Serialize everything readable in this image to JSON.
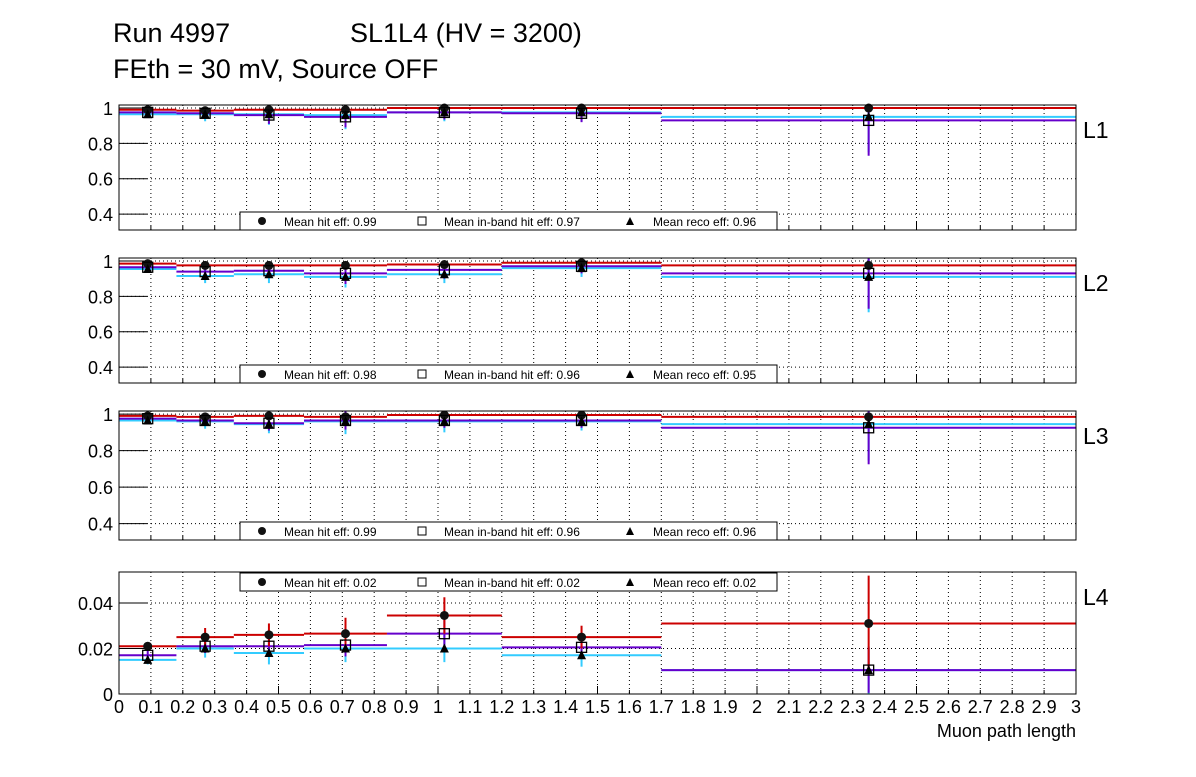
{
  "title": {
    "run": "Run 4997",
    "chamber": "SL1L4 (HV = 3200)",
    "conditions": "FEth = 30 mV, Source OFF"
  },
  "chart_data": {
    "type": "line",
    "xlabel": "Muon path length",
    "xlim": [
      0,
      3
    ],
    "x_tick_labels": [
      "0",
      "0.1",
      "0.2",
      "0.3",
      "0.4",
      "0.5",
      "0.6",
      "0.7",
      "0.8",
      "0.9",
      "1",
      "1.1",
      "1.2",
      "1.3",
      "1.4",
      "1.5",
      "1.6",
      "1.7",
      "1.8",
      "1.9",
      "2",
      "2.1",
      "2.2",
      "2.3",
      "2.4",
      "2.5",
      "2.6",
      "2.7",
      "2.8",
      "2.9",
      "3"
    ],
    "bin_edges": [
      0,
      0.18,
      0.36,
      0.58,
      0.84,
      1.2,
      1.7,
      3.0
    ],
    "bin_centers": [
      0.09,
      0.27,
      0.47,
      0.71,
      1.02,
      1.45,
      2.35
    ],
    "grid": true,
    "colors": {
      "hit": "#cc0000",
      "inband": "#6600cc",
      "reco": "#33ccff"
    },
    "panels": [
      {
        "label": "L1",
        "ylim": [
          0.31,
          1.017
        ],
        "yticks": [
          0.4,
          0.6,
          0.8,
          1
        ],
        "ytick_labels": [
          "0.4",
          "0.6",
          "0.8",
          "1"
        ],
        "legend_position": "bottom",
        "legend": {
          "hit": "Mean hit  eff: 0.99",
          "inband": "Mean in-band hit eff: 0.97",
          "reco": "Mean reco eff: 0.96"
        },
        "series": [
          {
            "name": "hit",
            "values": [
              0.99,
              0.985,
              0.99,
              0.99,
              1.0,
              1.0,
              1.0
            ],
            "errors": [
              0.005,
              0.008,
              0.008,
              0.01,
              0.005,
              0.005,
              0.01
            ]
          },
          {
            "name": "inband",
            "values": [
              0.975,
              0.97,
              0.96,
              0.95,
              0.975,
              0.97,
              0.93
            ],
            "errors": [
              0.01,
              0.03,
              0.05,
              0.06,
              0.04,
              0.05,
              0.2
            ]
          },
          {
            "name": "reco",
            "values": [
              0.965,
              0.965,
              0.965,
              0.96,
              0.975,
              0.975,
              0.95
            ],
            "errors": [
              0.01,
              0.04,
              0.06,
              0.08,
              0.05,
              0.05,
              0.2
            ]
          }
        ]
      },
      {
        "label": "L2",
        "ylim": [
          0.31,
          1.017
        ],
        "yticks": [
          0.4,
          0.6,
          0.8,
          1
        ],
        "ytick_labels": [
          "0.4",
          "0.6",
          "0.8",
          "1"
        ],
        "legend_position": "bottom",
        "legend": {
          "hit": "Mean hit  eff: 0.98",
          "inband": "Mean in-band hit eff: 0.96",
          "reco": "Mean reco eff: 0.95"
        },
        "series": [
          {
            "name": "hit",
            "values": [
              0.985,
              0.975,
              0.975,
              0.975,
              0.98,
              0.99,
              0.975
            ],
            "errors": [
              0.005,
              0.01,
              0.01,
              0.01,
              0.01,
              0.005,
              0.02
            ]
          },
          {
            "name": "inband",
            "values": [
              0.965,
              0.94,
              0.945,
              0.93,
              0.95,
              0.97,
              0.93
            ],
            "errors": [
              0.01,
              0.04,
              0.04,
              0.06,
              0.05,
              0.04,
              0.2
            ]
          },
          {
            "name": "reco",
            "values": [
              0.955,
              0.915,
              0.925,
              0.91,
              0.925,
              0.96,
              0.91
            ],
            "errors": [
              0.01,
              0.04,
              0.05,
              0.06,
              0.05,
              0.05,
              0.2
            ]
          }
        ]
      },
      {
        "label": "L3",
        "ylim": [
          0.31,
          1.017
        ],
        "yticks": [
          0.4,
          0.6,
          0.8,
          1
        ],
        "ytick_labels": [
          "0.4",
          "0.6",
          "0.8",
          "1"
        ],
        "legend_position": "bottom",
        "legend": {
          "hit": "Mean hit  eff: 0.99",
          "inband": "Mean in-band hit eff: 0.96",
          "reco": "Mean reco eff: 0.96"
        },
        "series": [
          {
            "name": "hit",
            "values": [
              0.99,
              0.985,
              0.99,
              0.985,
              0.995,
              0.995,
              0.985
            ],
            "errors": [
              0.005,
              0.008,
              0.008,
              0.01,
              0.005,
              0.005,
              0.01
            ]
          },
          {
            "name": "inband",
            "values": [
              0.975,
              0.965,
              0.95,
              0.965,
              0.965,
              0.965,
              0.925
            ],
            "errors": [
              0.01,
              0.03,
              0.04,
              0.05,
              0.04,
              0.04,
              0.2
            ]
          },
          {
            "name": "reco",
            "values": [
              0.965,
              0.96,
              0.945,
              0.96,
              0.96,
              0.96,
              0.945
            ],
            "errors": [
              0.01,
              0.04,
              0.05,
              0.07,
              0.06,
              0.05,
              0.2
            ]
          }
        ]
      },
      {
        "label": "L4",
        "ylim": [
          0,
          0.0536
        ],
        "yticks": [
          0,
          0.02,
          0.04
        ],
        "ytick_labels": [
          "0",
          "0.02",
          "0.04"
        ],
        "legend_position": "top",
        "legend": {
          "hit": "Mean hit  eff: 0.02",
          "inband": "Mean in-band hit eff: 0.02",
          "reco": "Mean reco eff: 0.02"
        },
        "series": [
          {
            "name": "hit",
            "values": [
              0.021,
              0.025,
              0.026,
              0.0265,
              0.0345,
              0.025,
              0.031
            ],
            "errors": [
              0.001,
              0.004,
              0.005,
              0.007,
              0.008,
              0.005,
              0.021
            ]
          },
          {
            "name": "inband",
            "values": [
              0.017,
              0.021,
              0.021,
              0.0215,
              0.0265,
              0.0205,
              0.0105
            ],
            "errors": [
              0.002,
              0.003,
              0.004,
              0.005,
              0.006,
              0.004,
              0.01
            ]
          },
          {
            "name": "reco",
            "values": [
              0.015,
              0.02,
              0.018,
              0.02,
              0.02,
              0.017,
              0.0105
            ],
            "errors": [
              0.002,
              0.004,
              0.005,
              0.006,
              0.006,
              0.005,
              0.0105
            ]
          }
        ]
      }
    ]
  }
}
